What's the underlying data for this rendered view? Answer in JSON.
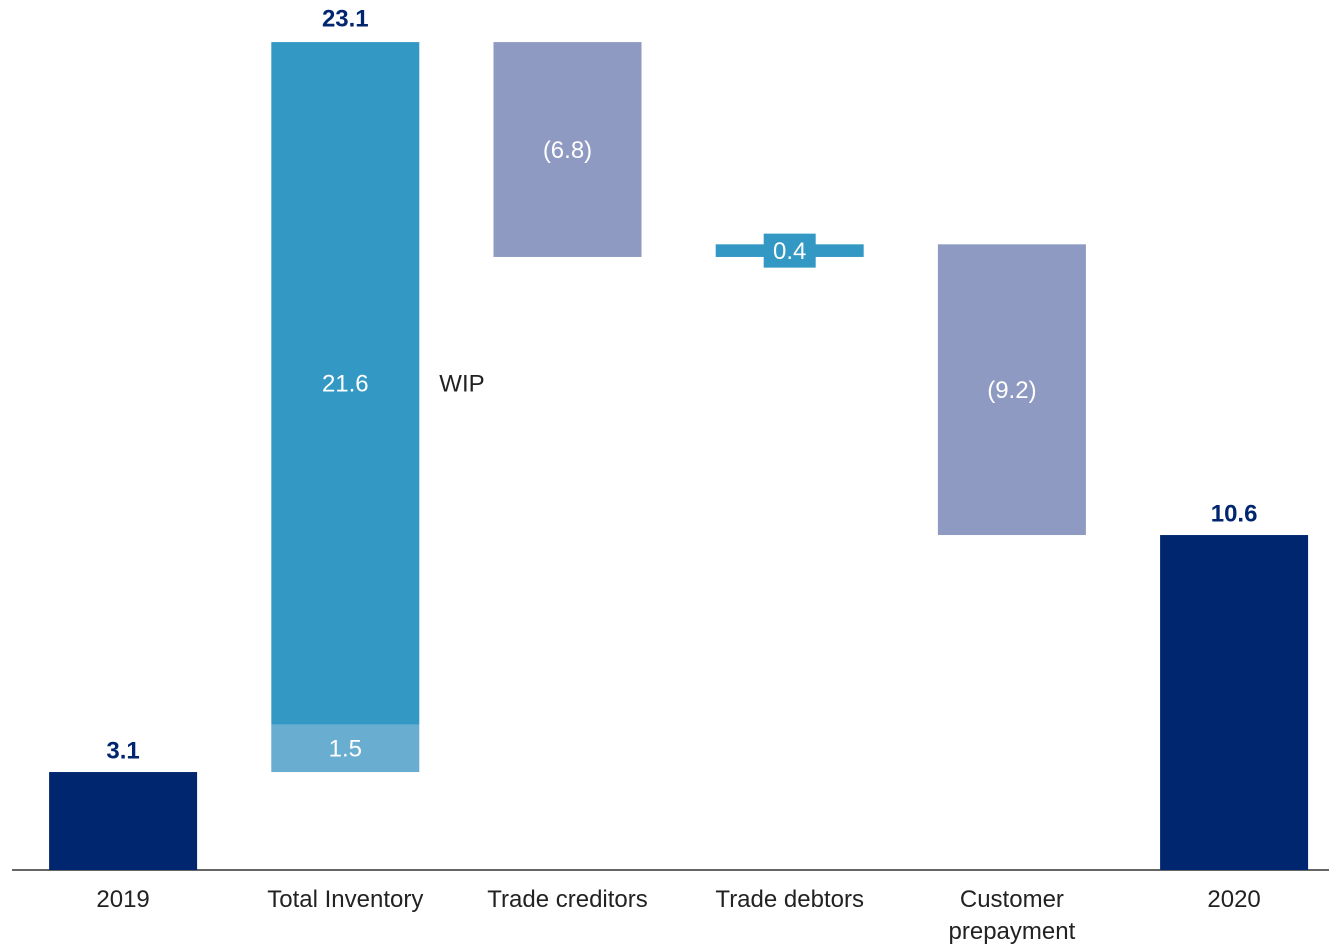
{
  "chart_data": {
    "type": "waterfall",
    "ylim": [
      0,
      27.5
    ],
    "bars": [
      {
        "category": "2019",
        "kind": "total",
        "segments": [
          {
            "value": 3.1,
            "color": "#00266f"
          }
        ]
      },
      {
        "category": "Total Inventory",
        "kind": "delta",
        "sum": 23.1,
        "segments": [
          {
            "value": 1.5,
            "color": "#69add1"
          },
          {
            "value": 21.6,
            "color": "#3399c4",
            "annotation": "WIP"
          }
        ]
      },
      {
        "category": "Trade creditors",
        "kind": "delta",
        "segments": [
          {
            "value": -6.8,
            "value_label": "(6.8)",
            "color": "#8e9ac2"
          }
        ]
      },
      {
        "category": "Trade debtors",
        "kind": "delta",
        "segments": [
          {
            "value": 0.4,
            "color": "#3399c4"
          }
        ]
      },
      {
        "category": "Customer prepayment",
        "kind": "delta",
        "segments": [
          {
            "value": -9.2,
            "value_label": "(9.2)",
            "color": "#8e9ac2"
          }
        ]
      },
      {
        "category": "2020",
        "kind": "total",
        "segments": [
          {
            "value": 10.6,
            "color": "#00266f"
          }
        ]
      }
    ]
  }
}
